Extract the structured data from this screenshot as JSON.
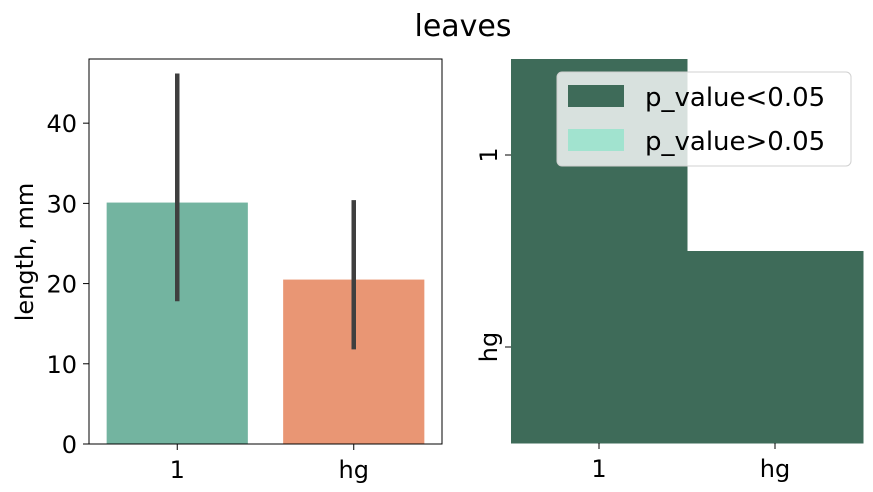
{
  "figure": {
    "title": "leaves"
  },
  "chart_data": [
    {
      "type": "bar",
      "categories": [
        "1",
        "hg"
      ],
      "values": [
        30.1,
        20.5
      ],
      "error_bars": [
        [
          17.8,
          46.2
        ],
        [
          11.8,
          30.4
        ]
      ],
      "colors": [
        "#73b4a0",
        "#e99674"
      ],
      "ylabel": "length, mm",
      "ylim": [
        0,
        48
      ],
      "yticks": [
        0,
        10,
        20,
        30,
        40
      ],
      "grid": false
    },
    {
      "type": "heatmap",
      "x_categories": [
        "1",
        "hg"
      ],
      "y_categories": [
        "1",
        "hg"
      ],
      "cells": [
        [
          "p_value<0.05",
          null
        ],
        [
          "p_value<0.05",
          "p_value<0.05"
        ]
      ],
      "legend": {
        "placement": "top-right",
        "entries": [
          {
            "label": "p_value<0.05",
            "color": "#3e6b59"
          },
          {
            "label": "p_value>0.05",
            "color": "#a1e3cf"
          }
        ]
      }
    }
  ]
}
